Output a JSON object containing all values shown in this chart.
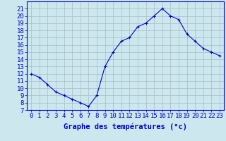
{
  "hours": [
    0,
    1,
    2,
    3,
    4,
    5,
    6,
    7,
    8,
    9,
    10,
    11,
    12,
    13,
    14,
    15,
    16,
    17,
    18,
    19,
    20,
    21,
    22,
    23
  ],
  "temps": [
    12,
    11.5,
    10.5,
    9.5,
    9,
    8.5,
    8,
    7.5,
    9,
    13,
    15,
    16.5,
    17,
    18.5,
    19,
    20,
    21,
    20,
    19.5,
    17.5,
    16.5,
    15.5,
    15,
    14.5
  ],
  "line_color": "#0000cc",
  "marker": "+",
  "bg_color": "#cce8ee",
  "grid_color": "#aabbc8",
  "xlabel": "Graphe des températures (°c)",
  "xlabel_color": "#0000cc",
  "ylim": [
    7,
    22
  ],
  "yticks": [
    7,
    8,
    9,
    10,
    11,
    12,
    13,
    14,
    15,
    16,
    17,
    18,
    19,
    20,
    21
  ],
  "xticks": [
    0,
    1,
    2,
    3,
    4,
    5,
    6,
    7,
    8,
    9,
    10,
    11,
    12,
    13,
    14,
    15,
    16,
    17,
    18,
    19,
    20,
    21,
    22,
    23
  ],
  "tick_color": "#0000cc",
  "spine_color": "#0000cc",
  "axis_fontsize": 6.5
}
